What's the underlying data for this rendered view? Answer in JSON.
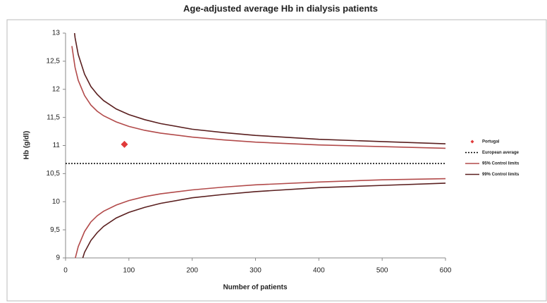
{
  "chart_data": {
    "type": "funnel",
    "title": "Age-adjusted average Hb in dialysis patients",
    "x_label": "Number of patients",
    "y_label": "Hb (g/dl)",
    "xlim": [
      0,
      600
    ],
    "xticks": [
      0,
      100,
      200,
      300,
      400,
      500,
      600
    ],
    "ylim": [
      9,
      13
    ],
    "yticks": [
      9,
      {
        "value": 9.5,
        "label": "9,5"
      },
      10,
      {
        "value": 10.5,
        "label": "10,5"
      },
      11,
      {
        "value": 11.5,
        "label": "11,5"
      },
      12,
      {
        "value": 12.5,
        "label": "12,5"
      },
      13
    ],
    "legend": "right",
    "series": [
      {
        "name": "Portugal",
        "color": "#e03a3a",
        "style": "point",
        "x": [
          93
        ],
        "values": [
          11.02
        ]
      },
      {
        "name": "European average",
        "color": "#000000",
        "style": "hline",
        "value": 10.68
      },
      {
        "name": "95% Control limits",
        "color": "#b24a4a",
        "style": "band",
        "x": [
          10,
          15,
          20,
          30,
          40,
          50,
          60,
          80,
          100,
          125,
          150,
          200,
          250,
          300,
          400,
          500,
          600
        ],
        "upper": [
          12.77,
          12.39,
          12.16,
          11.89,
          11.72,
          11.61,
          11.53,
          11.42,
          11.34,
          11.27,
          11.22,
          11.15,
          11.1,
          11.06,
          11.01,
          10.98,
          10.95
        ],
        "lower": [
          8.59,
          8.98,
          9.2,
          9.47,
          9.64,
          9.75,
          9.83,
          9.94,
          10.02,
          10.09,
          10.14,
          10.21,
          10.26,
          10.3,
          10.35,
          10.39,
          10.41
        ]
      },
      {
        "name": "99% Control limits",
        "color": "#5a1f1f",
        "style": "band",
        "x": [
          10,
          15,
          20,
          30,
          40,
          50,
          60,
          80,
          100,
          125,
          150,
          200,
          250,
          300,
          400,
          500,
          600
        ],
        "upper": [
          13.43,
          12.92,
          12.62,
          12.27,
          12.05,
          11.91,
          11.8,
          11.65,
          11.55,
          11.46,
          11.39,
          11.29,
          11.23,
          11.18,
          11.11,
          11.07,
          11.03
        ],
        "lower": [
          7.94,
          8.44,
          8.74,
          9.1,
          9.31,
          9.45,
          9.56,
          9.71,
          9.81,
          9.9,
          9.97,
          10.07,
          10.13,
          10.18,
          10.25,
          10.29,
          10.33
        ]
      }
    ]
  }
}
